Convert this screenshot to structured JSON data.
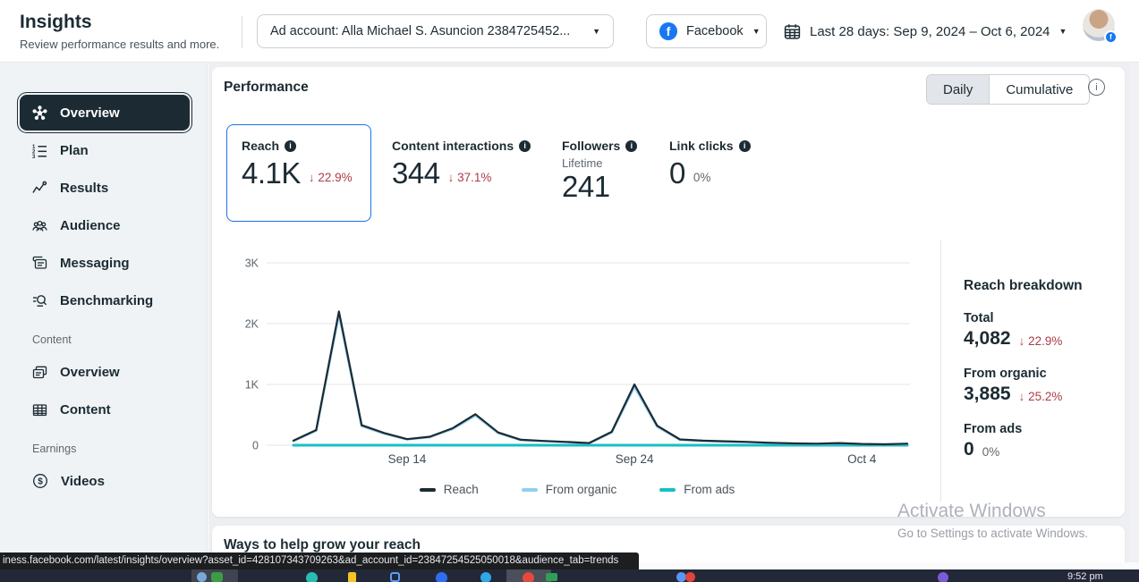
{
  "header": {
    "title": "Insights",
    "subtitle": "Review performance results and more.",
    "ad_account": {
      "label": "Ad account: Alla Michael S. Asuncion 2384725452..."
    },
    "platform": {
      "label": "Facebook"
    },
    "date_range": {
      "label": "Last 28 days: Sep 9, 2024 – Oct 6, 2024"
    }
  },
  "sidebar": {
    "items": [
      {
        "label": "Overview",
        "icon": "overview-hub-icon",
        "selected": true
      },
      {
        "label": "Plan",
        "icon": "numbered-list-icon",
        "selected": false
      },
      {
        "label": "Results",
        "icon": "trend-line-icon",
        "selected": false
      },
      {
        "label": "Audience",
        "icon": "people-icon",
        "selected": false
      },
      {
        "label": "Messaging",
        "icon": "chat-cards-icon",
        "selected": false
      },
      {
        "label": "Benchmarking",
        "icon": "search-lines-icon",
        "selected": false
      }
    ],
    "sections": [
      {
        "label": "Content",
        "items": [
          {
            "label": "Overview",
            "icon": "cards-icon"
          },
          {
            "label": "Content",
            "icon": "table-icon"
          }
        ]
      },
      {
        "label": "Earnings",
        "items": [
          {
            "label": "Videos",
            "icon": "dollar-circle-icon"
          }
        ]
      }
    ]
  },
  "performance": {
    "title": "Performance",
    "toggle": {
      "options": [
        "Daily",
        "Cumulative"
      ],
      "active": "Daily"
    },
    "metrics": [
      {
        "label": "Reach",
        "value": "4.1K",
        "delta": "22.9%",
        "trend": "down",
        "selected": true
      },
      {
        "label": "Content interactions",
        "value": "344",
        "delta": "37.1%",
        "trend": "down",
        "selected": false
      },
      {
        "label": "Followers",
        "sublabel": "Lifetime",
        "value": "241",
        "selected": false
      },
      {
        "label": "Link clicks",
        "value": "0",
        "delta": "0%",
        "trend": "neutral",
        "selected": false
      }
    ]
  },
  "chart_data": {
    "type": "line",
    "x": [
      "Sep 9",
      "Sep 10",
      "Sep 11",
      "Sep 12",
      "Sep 13",
      "Sep 14",
      "Sep 15",
      "Sep 16",
      "Sep 17",
      "Sep 18",
      "Sep 19",
      "Sep 20",
      "Sep 21",
      "Sep 22",
      "Sep 23",
      "Sep 24",
      "Sep 25",
      "Sep 26",
      "Sep 27",
      "Sep 28",
      "Sep 29",
      "Sep 30",
      "Oct 1",
      "Oct 2",
      "Oct 3",
      "Oct 4",
      "Oct 5",
      "Oct 6"
    ],
    "series": [
      {
        "name": "Reach",
        "color": "#1c2b33",
        "values": [
          75,
          250,
          2200,
          330,
          200,
          100,
          140,
          280,
          510,
          210,
          90,
          70,
          55,
          35,
          220,
          1000,
          320,
          95,
          75,
          65,
          55,
          40,
          30,
          25,
          35,
          20,
          15,
          25
        ]
      },
      {
        "name": "From organic",
        "color": "#8ed0f2",
        "values": [
          70,
          240,
          2150,
          315,
          190,
          95,
          133,
          267,
          490,
          200,
          85,
          66,
          52,
          33,
          210,
          960,
          305,
          90,
          71,
          61,
          52,
          38,
          28,
          23,
          33,
          19,
          14,
          23
        ]
      },
      {
        "name": "From ads",
        "color": "#17bfc4",
        "values": [
          0,
          0,
          0,
          0,
          0,
          0,
          0,
          0,
          0,
          0,
          0,
          0,
          0,
          0,
          0,
          0,
          0,
          0,
          0,
          0,
          0,
          0,
          0,
          0,
          0,
          0,
          0,
          0
        ]
      }
    ],
    "ylim": [
      0,
      3000
    ],
    "yticks": [
      {
        "label": "0",
        "value": 0
      },
      {
        "label": "1K",
        "value": 1000
      },
      {
        "label": "2K",
        "value": 2000
      },
      {
        "label": "3K",
        "value": 3000
      }
    ],
    "xticks": [
      "Sep 14",
      "Sep 24",
      "Oct 4"
    ],
    "grid": "horizontal",
    "legend_position": "bottom"
  },
  "breakdown": {
    "title": "Reach breakdown",
    "rows": [
      {
        "label": "Total",
        "value": "4,082",
        "delta": "22.9%",
        "trend": "down"
      },
      {
        "label": "From organic",
        "value": "3,885",
        "delta": "25.2%",
        "trend": "down"
      },
      {
        "label": "From ads",
        "value": "0",
        "delta": "0%",
        "trend": "neutral"
      }
    ]
  },
  "ways_section": {
    "title": "Ways to help grow your reach"
  },
  "watermark": {
    "line1": "Activate Windows",
    "line2": "Go to Settings to activate Windows."
  },
  "status_bar": {
    "url": "iness.facebook.com/latest/insights/overview?asset_id=428107343709263&ad_account_id=23847254525050018&audience_tab=trends"
  },
  "taskbar": {
    "time": "9:52 pm"
  },
  "colors": {
    "accent_blue": "#1b74e4",
    "facebook_blue": "#1877f2",
    "negative_red": "#ad3b45",
    "selected_nav_bg": "#1c2b33",
    "reach_line": "#1c2b33",
    "organic_line": "#8ed0f2",
    "ads_line": "#17bfc4"
  }
}
